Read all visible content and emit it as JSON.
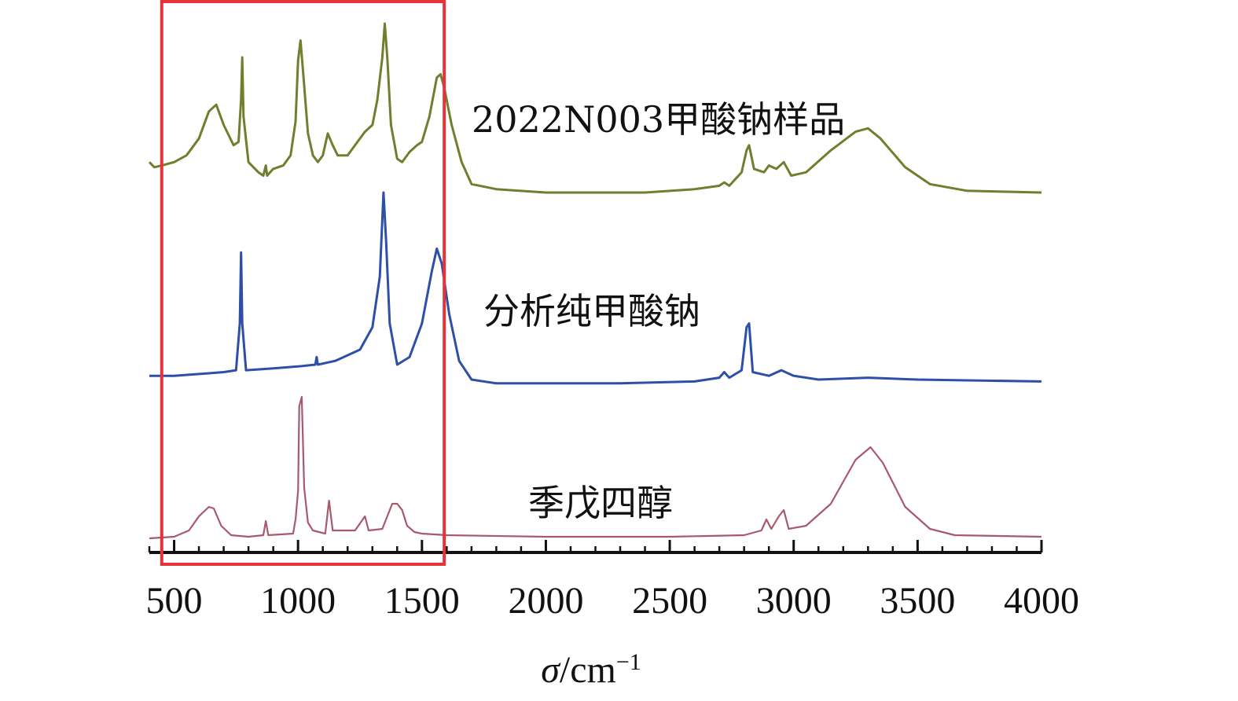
{
  "chart_data": {
    "type": "line",
    "xlabel": {
      "symbol": "σ",
      "unit": "/cm",
      "exponent": "−1"
    },
    "xlim": [
      400,
      4000
    ],
    "ticks": [
      "500",
      "1000",
      "1500",
      "2000",
      "2500",
      "3000",
      "3500",
      "4000"
    ],
    "tick_values": [
      500,
      1000,
      1500,
      2000,
      2500,
      3000,
      3500,
      4000
    ],
    "minor_step": 100,
    "stacked_offsets": true,
    "grid": false,
    "highlight_region": {
      "x": [
        450,
        1590
      ],
      "color": "#e8323a"
    },
    "series": [
      {
        "name": "2022N003甲酸钠样品",
        "color": "#6e7f2e",
        "baseline": 0.0,
        "points": [
          [
            400,
            0.18
          ],
          [
            420,
            0.15
          ],
          [
            450,
            0.16
          ],
          [
            500,
            0.18
          ],
          [
            550,
            0.22
          ],
          [
            600,
            0.32
          ],
          [
            640,
            0.48
          ],
          [
            670,
            0.52
          ],
          [
            700,
            0.4
          ],
          [
            740,
            0.28
          ],
          [
            760,
            0.3
          ],
          [
            770,
            0.55
          ],
          [
            775,
            0.8
          ],
          [
            780,
            0.45
          ],
          [
            800,
            0.18
          ],
          [
            840,
            0.12
          ],
          [
            860,
            0.1
          ],
          [
            870,
            0.16
          ],
          [
            875,
            0.1
          ],
          [
            900,
            0.14
          ],
          [
            940,
            0.16
          ],
          [
            970,
            0.22
          ],
          [
            990,
            0.42
          ],
          [
            1000,
            0.78
          ],
          [
            1010,
            0.9
          ],
          [
            1020,
            0.72
          ],
          [
            1040,
            0.35
          ],
          [
            1060,
            0.22
          ],
          [
            1080,
            0.18
          ],
          [
            1100,
            0.22
          ],
          [
            1120,
            0.35
          ],
          [
            1140,
            0.28
          ],
          [
            1160,
            0.22
          ],
          [
            1200,
            0.22
          ],
          [
            1240,
            0.3
          ],
          [
            1270,
            0.36
          ],
          [
            1300,
            0.4
          ],
          [
            1320,
            0.55
          ],
          [
            1340,
            0.8
          ],
          [
            1350,
            1.0
          ],
          [
            1360,
            0.8
          ],
          [
            1375,
            0.4
          ],
          [
            1400,
            0.2
          ],
          [
            1420,
            0.18
          ],
          [
            1450,
            0.24
          ],
          [
            1480,
            0.28
          ],
          [
            1500,
            0.3
          ],
          [
            1530,
            0.45
          ],
          [
            1560,
            0.68
          ],
          [
            1575,
            0.7
          ],
          [
            1590,
            0.62
          ],
          [
            1620,
            0.4
          ],
          [
            1660,
            0.18
          ],
          [
            1700,
            0.05
          ],
          [
            1800,
            0.02
          ],
          [
            2000,
            0.0
          ],
          [
            2200,
            0.0
          ],
          [
            2400,
            0.0
          ],
          [
            2600,
            0.02
          ],
          [
            2700,
            0.04
          ],
          [
            2720,
            0.06
          ],
          [
            2740,
            0.04
          ],
          [
            2790,
            0.12
          ],
          [
            2810,
            0.25
          ],
          [
            2820,
            0.28
          ],
          [
            2840,
            0.14
          ],
          [
            2880,
            0.12
          ],
          [
            2900,
            0.16
          ],
          [
            2930,
            0.14
          ],
          [
            2960,
            0.18
          ],
          [
            2990,
            0.1
          ],
          [
            3050,
            0.12
          ],
          [
            3150,
            0.25
          ],
          [
            3250,
            0.36
          ],
          [
            3300,
            0.38
          ],
          [
            3350,
            0.32
          ],
          [
            3450,
            0.15
          ],
          [
            3550,
            0.05
          ],
          [
            3700,
            0.01
          ],
          [
            4000,
            0.0
          ]
        ]
      },
      {
        "name": "分析纯甲酸钠",
        "color": "#2e4fa8",
        "baseline": 0.0,
        "points": [
          [
            400,
            0.02
          ],
          [
            500,
            0.02
          ],
          [
            600,
            0.03
          ],
          [
            700,
            0.04
          ],
          [
            750,
            0.05
          ],
          [
            765,
            0.3
          ],
          [
            770,
            0.68
          ],
          [
            775,
            0.3
          ],
          [
            790,
            0.05
          ],
          [
            900,
            0.06
          ],
          [
            1000,
            0.07
          ],
          [
            1070,
            0.08
          ],
          [
            1075,
            0.12
          ],
          [
            1080,
            0.08
          ],
          [
            1150,
            0.1
          ],
          [
            1250,
            0.16
          ],
          [
            1300,
            0.28
          ],
          [
            1330,
            0.55
          ],
          [
            1345,
            1.0
          ],
          [
            1355,
            0.75
          ],
          [
            1370,
            0.3
          ],
          [
            1400,
            0.08
          ],
          [
            1450,
            0.12
          ],
          [
            1500,
            0.3
          ],
          [
            1540,
            0.58
          ],
          [
            1560,
            0.7
          ],
          [
            1580,
            0.62
          ],
          [
            1610,
            0.35
          ],
          [
            1650,
            0.1
          ],
          [
            1700,
            0.0
          ],
          [
            1800,
            -0.02
          ],
          [
            2000,
            -0.02
          ],
          [
            2300,
            -0.02
          ],
          [
            2600,
            -0.01
          ],
          [
            2700,
            0.01
          ],
          [
            2720,
            0.04
          ],
          [
            2740,
            0.01
          ],
          [
            2790,
            0.05
          ],
          [
            2810,
            0.28
          ],
          [
            2820,
            0.3
          ],
          [
            2835,
            0.04
          ],
          [
            2900,
            0.02
          ],
          [
            2950,
            0.05
          ],
          [
            3000,
            0.02
          ],
          [
            3100,
            0.0
          ],
          [
            3300,
            0.01
          ],
          [
            3500,
            0.0
          ],
          [
            4000,
            -0.01
          ]
        ]
      },
      {
        "name": "季戊四醇",
        "color": "#a85a6c",
        "baseline": 0.0,
        "points": [
          [
            400,
            0.0
          ],
          [
            500,
            0.01
          ],
          [
            560,
            0.05
          ],
          [
            600,
            0.14
          ],
          [
            640,
            0.2
          ],
          [
            660,
            0.19
          ],
          [
            690,
            0.08
          ],
          [
            730,
            0.02
          ],
          [
            800,
            0.01
          ],
          [
            860,
            0.02
          ],
          [
            870,
            0.11
          ],
          [
            880,
            0.02
          ],
          [
            980,
            0.03
          ],
          [
            990,
            0.12
          ],
          [
            1000,
            0.3
          ],
          [
            1005,
            0.84
          ],
          [
            1015,
            0.9
          ],
          [
            1025,
            0.32
          ],
          [
            1040,
            0.1
          ],
          [
            1060,
            0.05
          ],
          [
            1110,
            0.03
          ],
          [
            1125,
            0.24
          ],
          [
            1140,
            0.05
          ],
          [
            1230,
            0.05
          ],
          [
            1270,
            0.14
          ],
          [
            1285,
            0.05
          ],
          [
            1340,
            0.06
          ],
          [
            1380,
            0.22
          ],
          [
            1400,
            0.22
          ],
          [
            1420,
            0.18
          ],
          [
            1440,
            0.08
          ],
          [
            1470,
            0.04
          ],
          [
            1500,
            0.03
          ],
          [
            1600,
            0.02
          ],
          [
            2000,
            0.01
          ],
          [
            2500,
            0.01
          ],
          [
            2800,
            0.02
          ],
          [
            2870,
            0.05
          ],
          [
            2890,
            0.12
          ],
          [
            2910,
            0.06
          ],
          [
            2940,
            0.14
          ],
          [
            2960,
            0.18
          ],
          [
            2980,
            0.06
          ],
          [
            3050,
            0.08
          ],
          [
            3150,
            0.22
          ],
          [
            3250,
            0.5
          ],
          [
            3310,
            0.58
          ],
          [
            3360,
            0.48
          ],
          [
            3450,
            0.2
          ],
          [
            3550,
            0.06
          ],
          [
            3650,
            0.02
          ],
          [
            4000,
            0.01
          ]
        ]
      }
    ]
  }
}
